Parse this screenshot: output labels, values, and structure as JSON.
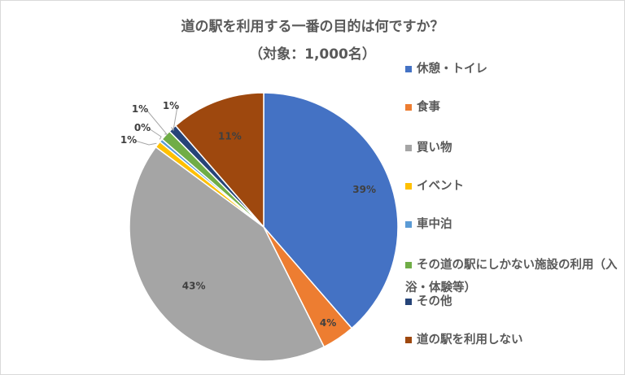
{
  "chart_data": {
    "type": "pie",
    "title": "道の駅を利用する一番の目的は何ですか？",
    "subtitle": "（対象：1,000名）",
    "legend_position": "right",
    "slices": [
      {
        "label": "休憩・トイレ",
        "value": 39,
        "display": "39%",
        "color": "#4472C4"
      },
      {
        "label": "食事",
        "value": 4,
        "display": "4%",
        "color": "#ED7D31"
      },
      {
        "label": "買い物",
        "value": 43,
        "display": "43%",
        "color": "#A5A5A5"
      },
      {
        "label": "イベント",
        "value": 0.8,
        "display": "1%",
        "color": "#FFC000"
      },
      {
        "label": "車中泊",
        "value": 0.4,
        "display": "0%",
        "color": "#5B9BD5"
      },
      {
        "label": "その道の駅にしかない施設の利用（入浴・体験等）",
        "value": 1.3,
        "display": "1%",
        "color": "#70AD47"
      },
      {
        "label": "その他",
        "value": 1.0,
        "display": "1%",
        "color": "#264478"
      },
      {
        "label": "道の駅を利用しない",
        "value": 11.5,
        "display": "11%",
        "color": "#9E480E"
      }
    ]
  }
}
